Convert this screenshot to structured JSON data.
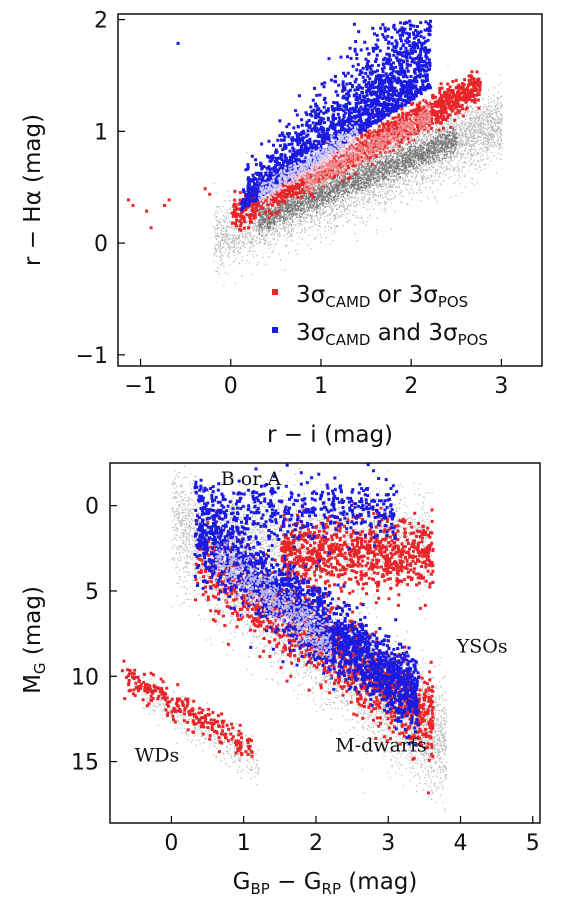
{
  "chart_data": [
    {
      "type": "scatter",
      "xlabel": "r − i (mag)",
      "ylabel": "r − Hα (mag)",
      "xlim": [
        -1.25,
        3.45
      ],
      "ylim": [
        -1.1,
        2.05
      ],
      "xticks": [
        -1,
        0,
        1,
        2,
        3
      ],
      "yticks": [
        -1,
        0,
        1,
        2
      ],
      "xtick_labels": [
        "−1",
        "0",
        "1",
        "2",
        "3"
      ],
      "ytick_labels": [
        "−1",
        "0",
        "1",
        "2"
      ],
      "legend": {
        "placement": "bottom-right",
        "entries": [
          {
            "name": "3σCAMD or 3σPOS",
            "pre": "3σ",
            "sub1": "CAMD",
            "mid": " or 3σ",
            "sub2": "POS",
            "color": "#e8262a"
          },
          {
            "name": "3σCAMD and 3σPOS",
            "pre": "3σ",
            "sub1": "CAMD",
            "mid": " and 3σ",
            "sub2": "POS",
            "color": "#1a1ae0"
          }
        ]
      },
      "series": [
        {
          "density": "grey",
          "x_range": [
            -0.2,
            3.1
          ],
          "note_shape": "main locus"
        },
        {
          "color": "#e8262a",
          "points_x": [
            -1.15,
            -1.1,
            -0.95,
            -0.9,
            -0.75,
            -0.7,
            -0.3,
            -0.25,
            2.7,
            2.75
          ],
          "points_y": [
            0.4,
            0.35,
            0.3,
            0.15,
            0.35,
            0.4,
            0.5,
            0.45,
            1.4,
            1.45
          ]
        },
        {
          "color": "#1a1ae0",
          "points_x": [
            -0.6
          ],
          "points_y": [
            1.8
          ]
        }
      ]
    },
    {
      "type": "scatter",
      "xlabel": "GBP − GRP (mag)",
      "xlabel_parts": {
        "a": "G",
        "a_sub": "BP",
        "mid": " − G",
        "b_sub": "RP",
        "end": " (mag)"
      },
      "ylabel": "MG (mag)",
      "ylabel_parts": {
        "a": "M",
        "a_sub": "G",
        "end": " (mag)"
      },
      "xlim": [
        -0.85,
        5.1
      ],
      "ylim": [
        18.6,
        -2.5
      ],
      "xticks": [
        0,
        1,
        2,
        3,
        4,
        5
      ],
      "yticks": [
        0,
        5,
        10,
        15
      ],
      "xtick_labels": [
        "0",
        "1",
        "2",
        "3",
        "4",
        "5"
      ],
      "ytick_labels": [
        "0",
        "5",
        "10",
        "15"
      ],
      "annotations": [
        {
          "text": "B  or  A",
          "x": 1.1,
          "y": -1.2
        },
        {
          "text": "YSOs",
          "x": 4.3,
          "y": 8.6
        },
        {
          "text": "M-dwarfs",
          "x": 2.9,
          "y": 14.4
        },
        {
          "text": "WDs",
          "x": -0.2,
          "y": 15.0
        }
      ]
    }
  ]
}
